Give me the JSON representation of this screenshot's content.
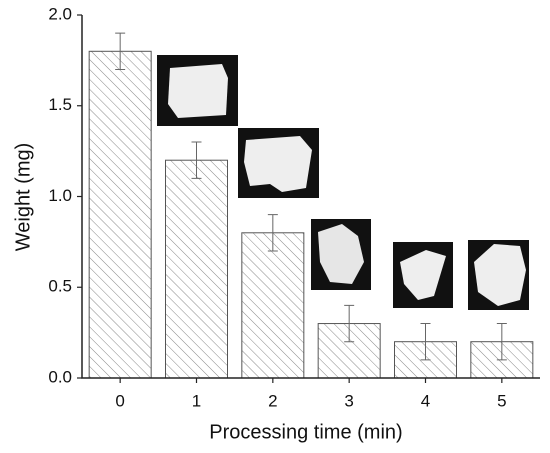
{
  "chart_data": {
    "type": "bar",
    "x_label": "Processing time (min)",
    "y_label": "Weight (mg)",
    "categories": [
      "0",
      "1",
      "2",
      "3",
      "4",
      "5"
    ],
    "values": [
      1.8,
      1.2,
      0.8,
      0.3,
      0.2,
      0.2
    ],
    "errors": [
      0.1,
      0.1,
      0.1,
      0.1,
      0.1,
      0.1
    ],
    "color": "#888888",
    "ylim": [
      0,
      2
    ],
    "yticks": [
      {
        "value": 0,
        "label": "0.0"
      },
      0.5,
      {
        "value": 1,
        "label": "1.0"
      },
      1.5,
      {
        "value": 2,
        "label": "2.0"
      }
    ]
  }
}
